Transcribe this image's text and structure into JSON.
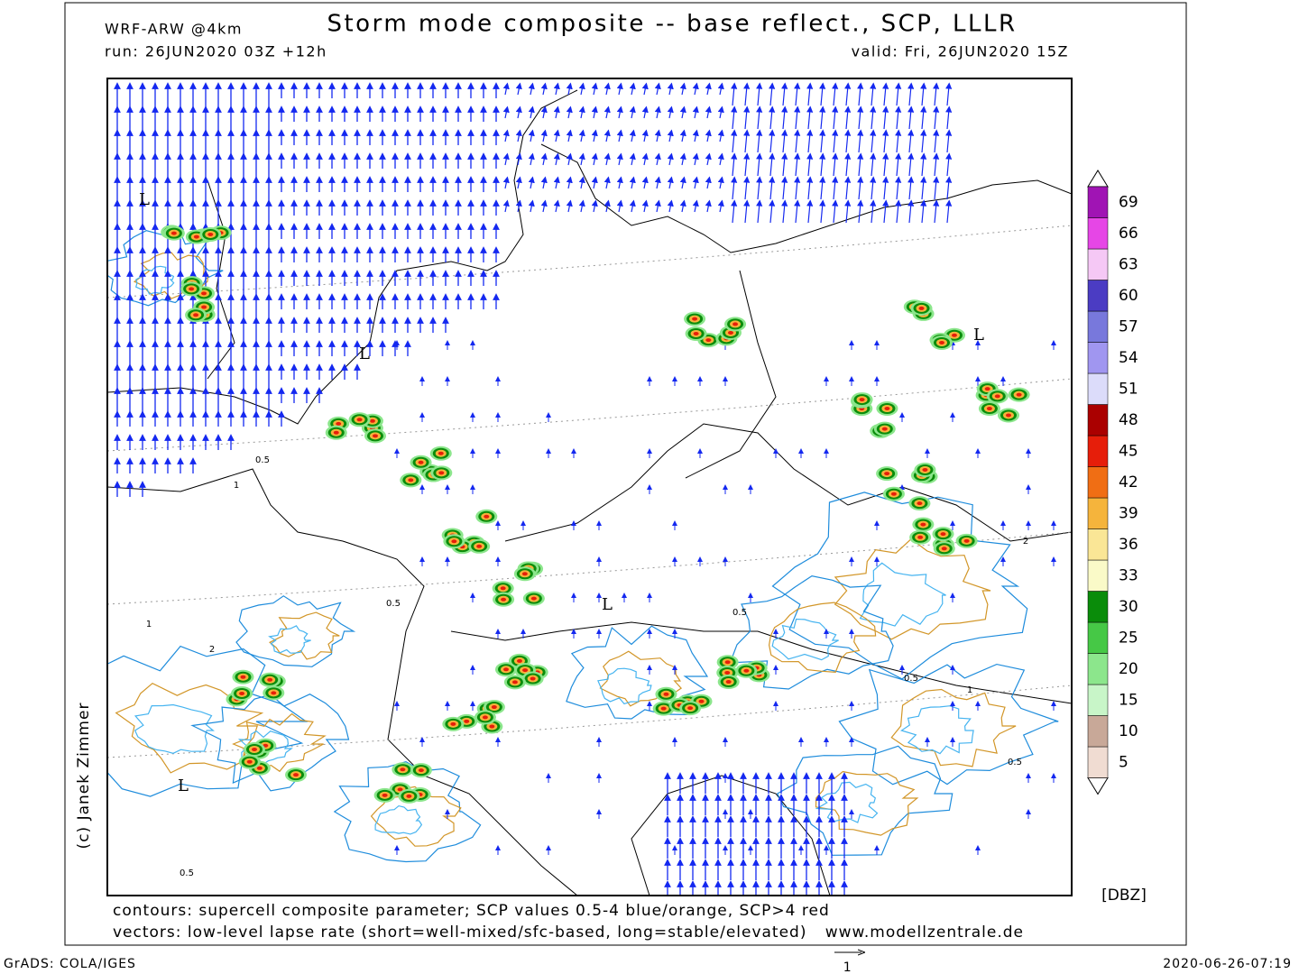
{
  "header": {
    "model": "WRF-ARW @4km",
    "title": "Storm mode composite -- base reflect., SCP, LLLR",
    "run": "run: 26JUN2020 03Z +12h",
    "valid": "valid: Fri, 26JUN2020 15Z"
  },
  "colorbar": {
    "levels": [
      5,
      10,
      15,
      20,
      25,
      30,
      33,
      36,
      39,
      42,
      45,
      48,
      51,
      54,
      57,
      60,
      63,
      66,
      69
    ],
    "colors": [
      "#f0dcd2",
      "#c8a898",
      "#c8f5c8",
      "#8ce68c",
      "#46c846",
      "#0a8c0a",
      "#fafac8",
      "#fae696",
      "#f5b43c",
      "#f06e14",
      "#e61e0a",
      "#aa0000",
      "#dcdcfa",
      "#a096f0",
      "#7878dc",
      "#4b3cc3",
      "#f5c8f5",
      "#e646e6",
      "#a014b4"
    ],
    "unit": "[DBZ]"
  },
  "map": {
    "labels": [
      "L",
      "L",
      "L",
      "L",
      "L",
      "0.5",
      "1",
      "0.5",
      "0.5",
      "1",
      "2",
      "2",
      "0.5",
      "0.5",
      "1",
      "0.5"
    ]
  },
  "footer": {
    "contours": "contours: supercell composite parameter; SCP values 0.5-4 blue/orange, SCP>4 red",
    "vectors": "vectors: low-level lapse rate (short=well-mixed/sfc-based, long=stable/elevated)",
    "website": "www.modellzentrale.de",
    "credit": "(c) Janek Zimmer",
    "software": "GrADS: COLA/IGES",
    "timestamp": "2020-06-26-07:19",
    "vector_scale": "1"
  }
}
